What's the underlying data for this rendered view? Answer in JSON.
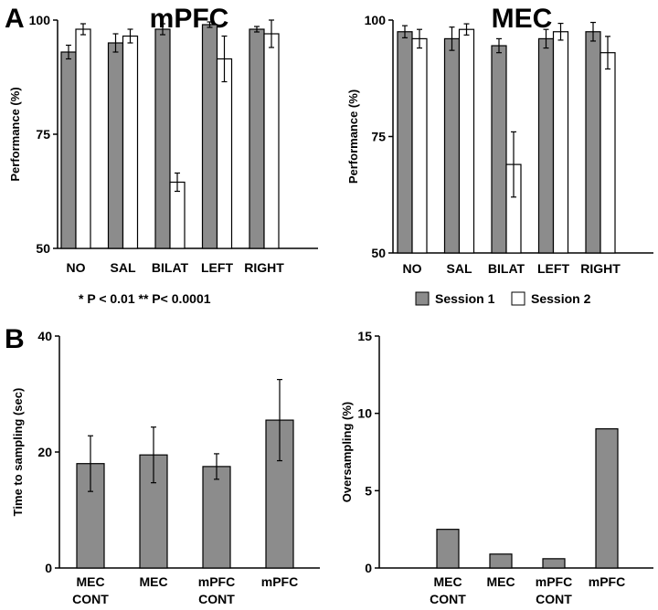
{
  "panels": {
    "a": "A",
    "b": "B"
  },
  "significance_note": "* P < 0.01 ** P< 0.0001",
  "legend": {
    "series": [
      {
        "name": "Session 1",
        "color": "#8c8c8c"
      },
      {
        "name": "Session 2",
        "color": "#ffffff"
      }
    ]
  },
  "colors": {
    "bar_gray": "#8c8c8c",
    "bar_white": "#ffffff",
    "axis": "#000000"
  },
  "chart_data": [
    {
      "id": "mpfc",
      "type": "bar",
      "title": "mPFC",
      "ylabel": "Performance (%)",
      "xlabel": "",
      "ylim": [
        50,
        100
      ],
      "yticks": [
        50,
        75,
        100
      ],
      "categories": [
        "NO",
        "SAL",
        "BILAT",
        "LEFT",
        "RIGHT"
      ],
      "series": [
        {
          "name": "Session 1",
          "values": [
            93,
            95,
            98,
            99,
            98
          ],
          "errors": [
            1.5,
            2,
            1.2,
            0.6,
            0.6
          ]
        },
        {
          "name": "Session 2",
          "values": [
            98,
            96.5,
            64.5,
            91.5,
            97
          ],
          "errors": [
            1.2,
            1.5,
            2,
            5,
            3
          ]
        }
      ]
    },
    {
      "id": "mec",
      "type": "bar",
      "title": "MEC",
      "ylabel": "Performance (%)",
      "xlabel": "",
      "ylim": [
        50,
        100
      ],
      "yticks": [
        50,
        75,
        100
      ],
      "categories": [
        "NO",
        "SAL",
        "BILAT",
        "LEFT",
        "RIGHT"
      ],
      "series": [
        {
          "name": "Session 1",
          "values": [
            97.5,
            96,
            94.5,
            96,
            97.5
          ],
          "errors": [
            1.3,
            2.5,
            1.5,
            2,
            2
          ]
        },
        {
          "name": "Session 2",
          "values": [
            96,
            98,
            69,
            97.5,
            93
          ],
          "errors": [
            2,
            1.2,
            7,
            1.8,
            3.5
          ]
        }
      ]
    },
    {
      "id": "time",
      "type": "bar",
      "title": "",
      "ylabel": "Time to sampling (sec)",
      "xlabel": "",
      "ylim": [
        0,
        40
      ],
      "yticks": [
        0,
        20,
        40
      ],
      "categories": [
        [
          "MEC",
          "CONT"
        ],
        [
          "MEC"
        ],
        [
          "mPFC",
          "CONT"
        ],
        [
          "mPFC"
        ]
      ],
      "series": [
        {
          "name": "Time to sampling",
          "values": [
            18,
            19.5,
            17.5,
            25.5
          ],
          "errors": [
            4.8,
            4.8,
            2.2,
            7
          ]
        }
      ]
    },
    {
      "id": "oversampling",
      "type": "bar",
      "title": "",
      "ylabel": "Oversampling (%)",
      "xlabel": "",
      "ylim": [
        0,
        15
      ],
      "yticks": [
        0,
        5,
        10,
        15
      ],
      "categories": [
        [
          "MEC",
          "CONT"
        ],
        [
          "MEC"
        ],
        [
          "mPFC",
          "CONT"
        ],
        [
          "mPFC"
        ]
      ],
      "series": [
        {
          "name": "Oversampling",
          "values": [
            2.5,
            0.9,
            0.6,
            9
          ]
        }
      ]
    }
  ]
}
